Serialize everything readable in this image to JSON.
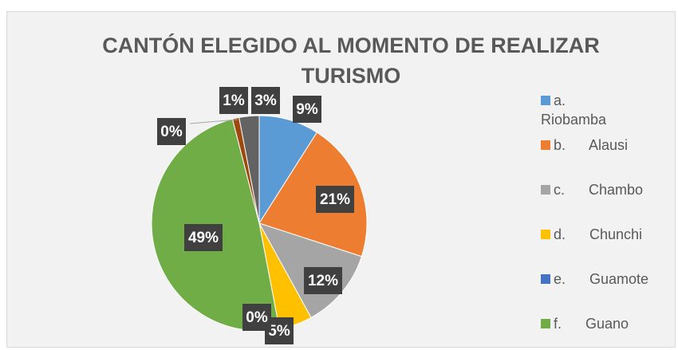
{
  "chart_data": {
    "type": "pie",
    "title": "CANTÓN ELEGIDO AL MOMENTO DE REALIZAR TURISMO",
    "categories": [
      "a.      Riobamba",
      "b.      Alausi",
      "c.      Chambo",
      "d.      Chunchi",
      "e.      Guamote",
      "f.      Guano",
      null,
      null,
      null
    ],
    "values": [
      9,
      21,
      12,
      5,
      0,
      49,
      0,
      1,
      3
    ],
    "value_labels": [
      "9%",
      "21%",
      "12%",
      "5%",
      "0%",
      "49%",
      "0%",
      "1%",
      "3%"
    ],
    "colors": [
      "#5b9bd5",
      "#ed7d31",
      "#a5a5a5",
      "#ffc000",
      "#4472c4",
      "#70ad47",
      "#255e91",
      "#9e480e",
      "#636363"
    ],
    "legend": "right"
  }
}
